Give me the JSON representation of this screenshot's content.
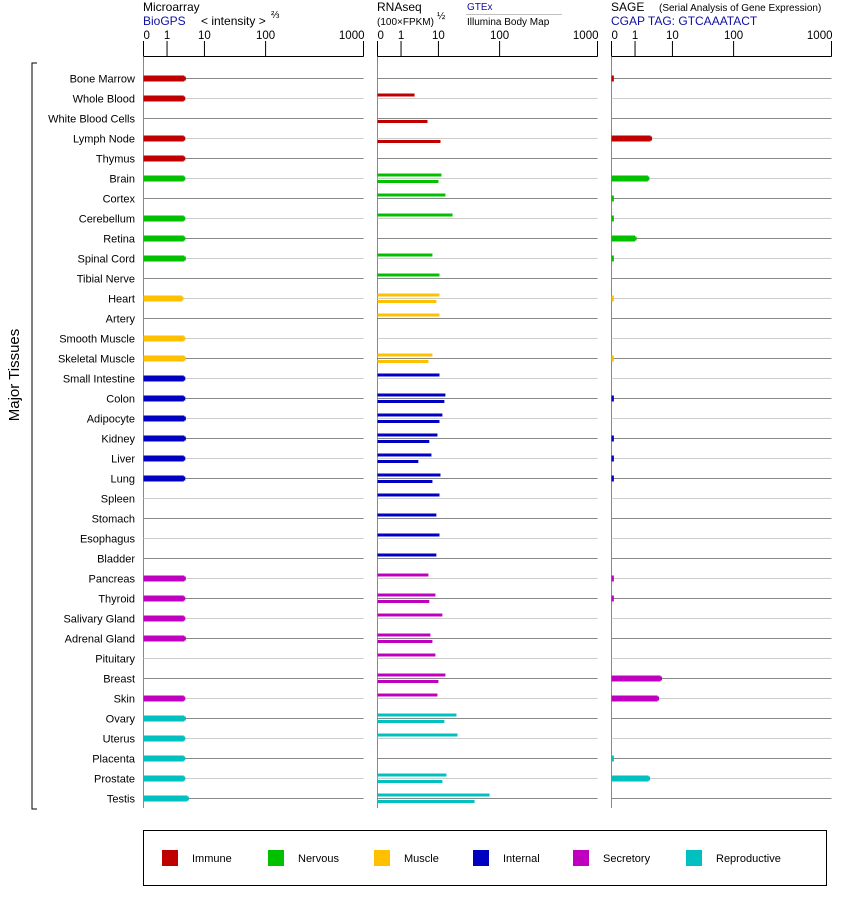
{
  "headers": {
    "microarray": {
      "title": "Microarray",
      "source": "BioGPS",
      "unit": "< intensity >",
      "unit_exp": "⅔"
    },
    "rnaseq": {
      "title": "RNAseq",
      "unit": "(100×FPKM)",
      "unit_exp": "½",
      "source1": "GTEx",
      "source2": "Illumina Body Map"
    },
    "sage": {
      "title": "SAGE",
      "subtitle": "(Serial Analysis of Gene Expression)",
      "tag": "CGAP TAG: GTCAAATACT"
    }
  },
  "y_axis_label": "Major Tissues",
  "legend": [
    {
      "name": "Immune",
      "color": "#c00000"
    },
    {
      "name": "Nervous",
      "color": "#00c000"
    },
    {
      "name": "Muscle",
      "color": "#ffc000"
    },
    {
      "name": "Internal",
      "color": "#0000c0"
    },
    {
      "name": "Secretory",
      "color": "#c000c0"
    },
    {
      "name": "Reproductive",
      "color": "#00c0c0"
    }
  ],
  "chart_data": {
    "type": "bar",
    "orientation": "horizontal",
    "axis_ticks": [
      "0",
      "1",
      "10",
      "100",
      "1000"
    ],
    "tick_values": [
      0,
      1,
      10,
      100,
      1000
    ],
    "xlim": [
      0,
      1000
    ],
    "grid": true,
    "legend_position": "bottom",
    "series": [
      "microarray",
      "gtex",
      "illumina",
      "sage"
    ],
    "rows": [
      {
        "tissue": "Bone Marrow",
        "group": "Immune",
        "microarray": 2.9,
        "gtex": null,
        "illumina": null,
        "sage": 0.1
      },
      {
        "tissue": "Whole Blood",
        "group": "Immune",
        "microarray": 2.8,
        "gtex": 2.3,
        "illumina": null,
        "sage": null
      },
      {
        "tissue": "White Blood Cells",
        "group": "Immune",
        "microarray": null,
        "gtex": null,
        "illumina": 5.1,
        "sage": null
      },
      {
        "tissue": "Lymph Node",
        "group": "Immune",
        "microarray": 2.8,
        "gtex": null,
        "illumina": 10.8,
        "sage": 2.6
      },
      {
        "tissue": "Thymus",
        "group": "Immune",
        "microarray": 2.8,
        "gtex": null,
        "illumina": null,
        "sage": null
      },
      {
        "tissue": "Brain",
        "group": "Nervous",
        "microarray": 2.8,
        "gtex": 11.2,
        "illumina": 10,
        "sage": 2.2
      },
      {
        "tissue": "Cortex",
        "group": "Nervous",
        "microarray": null,
        "gtex": 13,
        "illumina": null,
        "sage": 0.1
      },
      {
        "tissue": "Cerebellum",
        "group": "Nervous",
        "microarray": 2.8,
        "gtex": 17,
        "illumina": null,
        "sage": 0.1
      },
      {
        "tissue": "Retina",
        "group": "Nervous",
        "microarray": 2.8,
        "gtex": null,
        "illumina": null,
        "sage": 1.0
      },
      {
        "tissue": "Spinal Cord",
        "group": "Nervous",
        "microarray": 2.9,
        "gtex": 6.9,
        "illumina": null,
        "sage": 0.1
      },
      {
        "tissue": "Tibial Nerve",
        "group": "Nervous",
        "microarray": null,
        "gtex": 10.4,
        "illumina": null,
        "sage": null
      },
      {
        "tissue": "Heart",
        "group": "Muscle",
        "microarray": 2.5,
        "gtex": 10.4,
        "illumina": 8.8,
        "sage": 0.1
      },
      {
        "tissue": "Artery",
        "group": "Muscle",
        "microarray": null,
        "gtex": 10.4,
        "illumina": null,
        "sage": null
      },
      {
        "tissue": "Smooth Muscle",
        "group": "Muscle",
        "microarray": 2.8,
        "gtex": null,
        "illumina": null,
        "sage": null
      },
      {
        "tissue": "Skeletal Muscle",
        "group": "Muscle",
        "microarray": 2.9,
        "gtex": 6.9,
        "illumina": 5.4,
        "sage": 0.1
      },
      {
        "tissue": "Small Intestine",
        "group": "Internal",
        "microarray": 2.8,
        "gtex": 10.4,
        "illumina": null,
        "sage": null
      },
      {
        "tissue": "Colon",
        "group": "Internal",
        "microarray": 2.8,
        "gtex": 13,
        "illumina": 12.5,
        "sage": 0.1
      },
      {
        "tissue": "Adipocyte",
        "group": "Internal",
        "microarray": 2.9,
        "gtex": 11.6,
        "illumina": 10.4,
        "sage": null
      },
      {
        "tissue": "Kidney",
        "group": "Internal",
        "microarray": 2.9,
        "gtex": 9.4,
        "illumina": 5.7,
        "sage": 0.1
      },
      {
        "tissue": "Liver",
        "group": "Internal",
        "microarray": 2.8,
        "gtex": 6.5,
        "illumina": 2.9,
        "sage": 0.1
      },
      {
        "tissue": "Lung",
        "group": "Internal",
        "microarray": 2.8,
        "gtex": 10.8,
        "illumina": 6.9,
        "sage": 0.1
      },
      {
        "tissue": "Spleen",
        "group": "Internal",
        "microarray": null,
        "gtex": 10.4,
        "illumina": null,
        "sage": null
      },
      {
        "tissue": "Stomach",
        "group": "Internal",
        "microarray": null,
        "gtex": 8.8,
        "illumina": null,
        "sage": null
      },
      {
        "tissue": "Esophagus",
        "group": "Internal",
        "microarray": null,
        "gtex": 10.4,
        "illumina": null,
        "sage": null
      },
      {
        "tissue": "Bladder",
        "group": "Internal",
        "microarray": null,
        "gtex": 8.8,
        "illumina": null,
        "sage": null
      },
      {
        "tissue": "Pancreas",
        "group": "Secretory",
        "microarray": 2.9,
        "gtex": 5.4,
        "illumina": null,
        "sage": 0.1
      },
      {
        "tissue": "Thyroid",
        "group": "Secretory",
        "microarray": 2.8,
        "gtex": 8.3,
        "illumina": 5.7,
        "sage": 0.1
      },
      {
        "tissue": "Salivary Gland",
        "group": "Secretory",
        "microarray": 2.8,
        "gtex": 11.6,
        "illumina": null,
        "sage": null
      },
      {
        "tissue": "Adrenal Gland",
        "group": "Secretory",
        "microarray": 2.9,
        "gtex": 6.1,
        "illumina": 6.9,
        "sage": null
      },
      {
        "tissue": "Pituitary",
        "group": "Secretory",
        "microarray": null,
        "gtex": 8.3,
        "illumina": null,
        "sage": null
      },
      {
        "tissue": "Breast",
        "group": "Secretory",
        "microarray": null,
        "gtex": 13,
        "illumina": 10,
        "sage": 4.8
      },
      {
        "tissue": "Skin",
        "group": "Secretory",
        "microarray": 2.8,
        "gtex": 9.4,
        "illumina": null,
        "sage": 4.0
      },
      {
        "tissue": "Ovary",
        "group": "Reproductive",
        "microarray": 2.9,
        "gtex": 19.7,
        "illumina": 12.5,
        "sage": null
      },
      {
        "tissue": "Uterus",
        "group": "Reproductive",
        "microarray": 2.8,
        "gtex": 20.5,
        "illumina": null,
        "sage": null
      },
      {
        "tissue": "Placenta",
        "group": "Reproductive",
        "microarray": 2.8,
        "gtex": null,
        "illumina": null,
        "sage": 0.1
      },
      {
        "tissue": "Prostate",
        "group": "Reproductive",
        "microarray": 2.8,
        "gtex": 13.5,
        "illumina": 11.6,
        "sage": 2.3
      },
      {
        "tissue": "Testis",
        "group": "Reproductive",
        "microarray": 3.5,
        "gtex": 68.5,
        "illumina": 38.9,
        "sage": null
      }
    ]
  }
}
